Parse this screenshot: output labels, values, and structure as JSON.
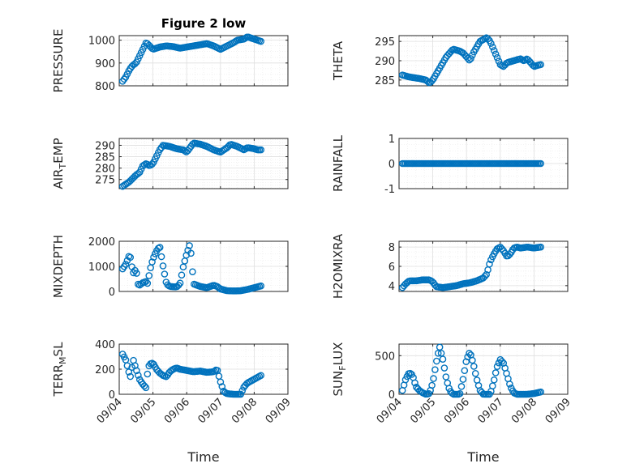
{
  "figure": {
    "marker_color": "#0072BD",
    "x_label": "Time"
  },
  "chart_data": [
    {
      "type": "scatter",
      "id": "pressure",
      "title": "Figure 2 low",
      "ylabel": "PRESSURE",
      "ylim": [
        800,
        1020
      ],
      "yticks": [
        800,
        900,
        1000
      ],
      "ytick_labels": [
        "800",
        "900",
        "1000"
      ],
      "xlim": [
        0,
        5
      ],
      "xticks": [
        0,
        1,
        2,
        3,
        4,
        5
      ],
      "xtick_labels": [
        "09/04",
        "09/05",
        "09/06",
        "09/07",
        "09/08",
        "09/09"
      ],
      "show_xticklabels": false,
      "grid": true,
      "anchors": [
        [
          0.1,
          820
        ],
        [
          0.2,
          840
        ],
        [
          0.3,
          870
        ],
        [
          0.4,
          890
        ],
        [
          0.5,
          900
        ],
        [
          0.6,
          930
        ],
        [
          0.7,
          960
        ],
        [
          0.8,
          990
        ],
        [
          0.9,
          975
        ],
        [
          1.0,
          960
        ],
        [
          1.2,
          970
        ],
        [
          1.4,
          975
        ],
        [
          1.6,
          972
        ],
        [
          1.8,
          965
        ],
        [
          2.0,
          970
        ],
        [
          2.2,
          975
        ],
        [
          2.4,
          980
        ],
        [
          2.6,
          985
        ],
        [
          2.8,
          975
        ],
        [
          3.0,
          960
        ],
        [
          3.2,
          975
        ],
        [
          3.4,
          990
        ],
        [
          3.5,
          1000
        ],
        [
          3.7,
          1005
        ],
        [
          3.8,
          1015
        ],
        [
          3.9,
          1010
        ],
        [
          4.0,
          1005
        ],
        [
          4.1,
          1000
        ],
        [
          4.2,
          995
        ]
      ]
    },
    {
      "type": "scatter",
      "id": "theta",
      "title": "",
      "ylabel": "THETA",
      "ylim": [
        283.5,
        296.5
      ],
      "yticks": [
        285,
        290,
        295
      ],
      "ytick_labels": [
        "285",
        "290",
        "295"
      ],
      "xlim": [
        0,
        5
      ],
      "xticks": [
        0,
        1,
        2,
        3,
        4,
        5
      ],
      "xtick_labels": [
        "09/04",
        "09/05",
        "09/06",
        "09/07",
        "09/08",
        "09/09"
      ],
      "show_xticklabels": false,
      "grid": true,
      "anchors": [
        [
          0.1,
          286.3
        ],
        [
          0.3,
          285.8
        ],
        [
          0.6,
          285.4
        ],
        [
          0.8,
          285
        ],
        [
          0.9,
          284.2
        ],
        [
          1.0,
          285
        ],
        [
          1.2,
          288
        ],
        [
          1.4,
          291
        ],
        [
          1.6,
          293
        ],
        [
          1.8,
          292.5
        ],
        [
          1.9,
          292
        ],
        [
          2.0,
          291
        ],
        [
          2.1,
          290
        ],
        [
          2.2,
          292
        ],
        [
          2.4,
          295
        ],
        [
          2.6,
          296
        ],
        [
          2.7,
          295
        ],
        [
          2.8,
          293
        ],
        [
          2.9,
          291
        ],
        [
          3.0,
          289
        ],
        [
          3.1,
          288.5
        ],
        [
          3.2,
          289.5
        ],
        [
          3.4,
          290
        ],
        [
          3.6,
          290.5
        ],
        [
          3.7,
          290
        ],
        [
          3.8,
          290.5
        ],
        [
          3.9,
          289.5
        ],
        [
          4.0,
          288.5
        ],
        [
          4.1,
          288.8
        ],
        [
          4.2,
          289
        ]
      ]
    },
    {
      "type": "scatter",
      "id": "air_temp",
      "title": "",
      "ylabel": "AIR_TEMP",
      "ylim": [
        271,
        293
      ],
      "yticks": [
        275,
        280,
        285,
        290
      ],
      "ytick_labels": [
        "275",
        "280",
        "285",
        "290"
      ],
      "xlim": [
        0,
        5
      ],
      "xticks": [
        0,
        1,
        2,
        3,
        4,
        5
      ],
      "xtick_labels": [
        "09/04",
        "09/05",
        "09/06",
        "09/07",
        "09/08",
        "09/09"
      ],
      "show_xticklabels": false,
      "grid": true,
      "anchors": [
        [
          0.1,
          272
        ],
        [
          0.3,
          274
        ],
        [
          0.5,
          277
        ],
        [
          0.6,
          278
        ],
        [
          0.7,
          281
        ],
        [
          0.8,
          282
        ],
        [
          0.9,
          281
        ],
        [
          1.0,
          282
        ],
        [
          1.1,
          285
        ],
        [
          1.2,
          288
        ],
        [
          1.3,
          290
        ],
        [
          1.5,
          289.5
        ],
        [
          1.7,
          288.5
        ],
        [
          1.9,
          288
        ],
        [
          2.0,
          287
        ],
        [
          2.1,
          289
        ],
        [
          2.2,
          291
        ],
        [
          2.4,
          290.5
        ],
        [
          2.6,
          289.5
        ],
        [
          2.8,
          288
        ],
        [
          3.0,
          287
        ],
        [
          3.2,
          289
        ],
        [
          3.3,
          290.5
        ],
        [
          3.5,
          289.5
        ],
        [
          3.7,
          288
        ],
        [
          3.8,
          289
        ],
        [
          4.0,
          288.5
        ],
        [
          4.1,
          288
        ],
        [
          4.2,
          288
        ]
      ]
    },
    {
      "type": "scatter",
      "id": "rainfall",
      "title": "",
      "ylabel": "RAINFALL",
      "ylim": [
        -1,
        1
      ],
      "yticks": [
        -1,
        0,
        1
      ],
      "ytick_labels": [
        "-1",
        "0",
        "1"
      ],
      "xlim": [
        0,
        5
      ],
      "xticks": [
        0,
        1,
        2,
        3,
        4,
        5
      ],
      "xtick_labels": [
        "09/04",
        "09/05",
        "09/06",
        "09/07",
        "09/08",
        "09/09"
      ],
      "show_xticklabels": false,
      "grid": true,
      "anchors": [
        [
          0.1,
          0
        ],
        [
          4.2,
          0
        ]
      ]
    },
    {
      "type": "scatter",
      "id": "mixdepth",
      "title": "",
      "ylabel": "MIXDEPTH",
      "ylim": [
        0,
        2000
      ],
      "yticks": [
        0,
        1000,
        2000
      ],
      "ytick_labels": [
        "0",
        "1000",
        "2000"
      ],
      "xlim": [
        0,
        5
      ],
      "xticks": [
        0,
        1,
        2,
        3,
        4,
        5
      ],
      "xtick_labels": [
        "09/04",
        "09/05",
        "09/06",
        "09/07",
        "09/08",
        "09/09"
      ],
      "show_xticklabels": false,
      "grid": true,
      "anchors": [
        [
          0.1,
          900
        ],
        [
          0.2,
          1100
        ],
        [
          0.3,
          1450
        ],
        [
          0.35,
          1300
        ],
        [
          0.4,
          700
        ],
        [
          0.5,
          900
        ],
        [
          0.55,
          300
        ],
        [
          0.6,
          250
        ],
        [
          0.7,
          350
        ],
        [
          0.8,
          400
        ],
        [
          0.85,
          300
        ],
        [
          0.9,
          800
        ],
        [
          1.0,
          1300
        ],
        [
          1.1,
          1600
        ],
        [
          1.2,
          1800
        ],
        [
          1.3,
          1000
        ],
        [
          1.4,
          300
        ],
        [
          1.5,
          200
        ],
        [
          1.7,
          180
        ],
        [
          1.8,
          300
        ],
        [
          1.9,
          1000
        ],
        [
          2.0,
          1500
        ],
        [
          2.1,
          1900
        ],
        [
          2.15,
          1200
        ],
        [
          2.2,
          300
        ],
        [
          2.4,
          200
        ],
        [
          2.6,
          150
        ],
        [
          2.8,
          250
        ],
        [
          2.9,
          200
        ],
        [
          3.0,
          100
        ],
        [
          3.2,
          30
        ],
        [
          3.4,
          20
        ],
        [
          3.6,
          30
        ],
        [
          3.8,
          80
        ],
        [
          4.0,
          150
        ],
        [
          4.2,
          220
        ]
      ]
    },
    {
      "type": "scatter",
      "id": "h2omixra",
      "title": "",
      "ylabel": "H2OMIXRA",
      "ylim": [
        3.4,
        8.6
      ],
      "yticks": [
        4,
        6,
        8
      ],
      "ytick_labels": [
        "4",
        "6",
        "8"
      ],
      "xlim": [
        0,
        5
      ],
      "xticks": [
        0,
        1,
        2,
        3,
        4,
        5
      ],
      "xtick_labels": [
        "09/04",
        "09/05",
        "09/06",
        "09/07",
        "09/08",
        "09/09"
      ],
      "show_xticklabels": false,
      "grid": true,
      "anchors": [
        [
          0.1,
          3.8
        ],
        [
          0.2,
          4.2
        ],
        [
          0.3,
          4.5
        ],
        [
          0.5,
          4.5
        ],
        [
          0.7,
          4.6
        ],
        [
          0.9,
          4.6
        ],
        [
          1.0,
          4.4
        ],
        [
          1.1,
          3.9
        ],
        [
          1.3,
          3.8
        ],
        [
          1.5,
          3.9
        ],
        [
          1.7,
          4.0
        ],
        [
          1.9,
          4.2
        ],
        [
          2.1,
          4.3
        ],
        [
          2.3,
          4.5
        ],
        [
          2.5,
          4.8
        ],
        [
          2.6,
          5.2
        ],
        [
          2.7,
          6.5
        ],
        [
          2.8,
          7.2
        ],
        [
          2.9,
          7.8
        ],
        [
          3.0,
          8.0
        ],
        [
          3.1,
          7.6
        ],
        [
          3.2,
          7.0
        ],
        [
          3.3,
          7.3
        ],
        [
          3.4,
          7.9
        ],
        [
          3.5,
          8.0
        ],
        [
          3.6,
          7.9
        ],
        [
          3.8,
          8.0
        ],
        [
          4.0,
          7.9
        ],
        [
          4.2,
          8.0
        ]
      ]
    },
    {
      "type": "scatter",
      "id": "terr_msl",
      "title": "",
      "ylabel": "TERR_MSL",
      "ylim": [
        0,
        400
      ],
      "yticks": [
        0,
        200,
        400
      ],
      "ytick_labels": [
        "0",
        "200",
        "400"
      ],
      "xlim": [
        0,
        5
      ],
      "xticks": [
        0,
        1,
        2,
        3,
        4,
        5
      ],
      "xtick_labels": [
        "09/04",
        "09/05",
        "09/06",
        "09/07",
        "09/08",
        "09/09"
      ],
      "show_xticklabels": true,
      "grid": true,
      "anchors": [
        [
          0.1,
          320
        ],
        [
          0.2,
          270
        ],
        [
          0.3,
          160
        ],
        [
          0.35,
          130
        ],
        [
          0.4,
          290
        ],
        [
          0.5,
          200
        ],
        [
          0.6,
          120
        ],
        [
          0.7,
          80
        ],
        [
          0.8,
          50
        ],
        [
          0.85,
          200
        ],
        [
          0.9,
          240
        ],
        [
          1.0,
          250
        ],
        [
          1.1,
          200
        ],
        [
          1.2,
          170
        ],
        [
          1.3,
          150
        ],
        [
          1.4,
          140
        ],
        [
          1.5,
          180
        ],
        [
          1.6,
          200
        ],
        [
          1.7,
          210
        ],
        [
          1.8,
          200
        ],
        [
          2.0,
          190
        ],
        [
          2.2,
          180
        ],
        [
          2.4,
          185
        ],
        [
          2.6,
          175
        ],
        [
          2.8,
          180
        ],
        [
          2.9,
          200
        ],
        [
          3.0,
          100
        ],
        [
          3.1,
          20
        ],
        [
          3.2,
          5
        ],
        [
          3.4,
          0
        ],
        [
          3.6,
          0
        ],
        [
          3.7,
          60
        ],
        [
          3.8,
          90
        ],
        [
          4.0,
          120
        ],
        [
          4.2,
          150
        ]
      ]
    },
    {
      "type": "scatter",
      "id": "sun_flux",
      "title": "",
      "ylabel": "SUN_FLUX",
      "ylim": [
        0,
        650
      ],
      "yticks": [
        0,
        500
      ],
      "ytick_labels": [
        "0",
        "500"
      ],
      "xlim": [
        0,
        5
      ],
      "xticks": [
        0,
        1,
        2,
        3,
        4,
        5
      ],
      "xtick_labels": [
        "09/04",
        "09/05",
        "09/06",
        "09/07",
        "09/08",
        "09/09"
      ],
      "show_xticklabels": true,
      "grid": true,
      "anchors": [
        [
          0.1,
          50
        ],
        [
          0.2,
          200
        ],
        [
          0.3,
          280
        ],
        [
          0.4,
          250
        ],
        [
          0.5,
          100
        ],
        [
          0.6,
          50
        ],
        [
          0.7,
          20
        ],
        [
          0.8,
          0
        ],
        [
          0.9,
          10
        ],
        [
          1.0,
          150
        ],
        [
          1.1,
          400
        ],
        [
          1.2,
          620
        ],
        [
          1.3,
          450
        ],
        [
          1.4,
          200
        ],
        [
          1.5,
          50
        ],
        [
          1.6,
          0
        ],
        [
          1.8,
          0
        ],
        [
          1.9,
          200
        ],
        [
          2.0,
          450
        ],
        [
          2.1,
          550
        ],
        [
          2.2,
          400
        ],
        [
          2.3,
          200
        ],
        [
          2.4,
          50
        ],
        [
          2.5,
          0
        ],
        [
          2.7,
          0
        ],
        [
          2.8,
          150
        ],
        [
          2.9,
          350
        ],
        [
          3.0,
          450
        ],
        [
          3.1,
          400
        ],
        [
          3.2,
          250
        ],
        [
          3.3,
          100
        ],
        [
          3.4,
          20
        ],
        [
          3.5,
          0
        ],
        [
          3.6,
          0
        ],
        [
          3.8,
          0
        ],
        [
          4.0,
          10
        ],
        [
          4.1,
          20
        ],
        [
          4.2,
          30
        ]
      ]
    }
  ]
}
